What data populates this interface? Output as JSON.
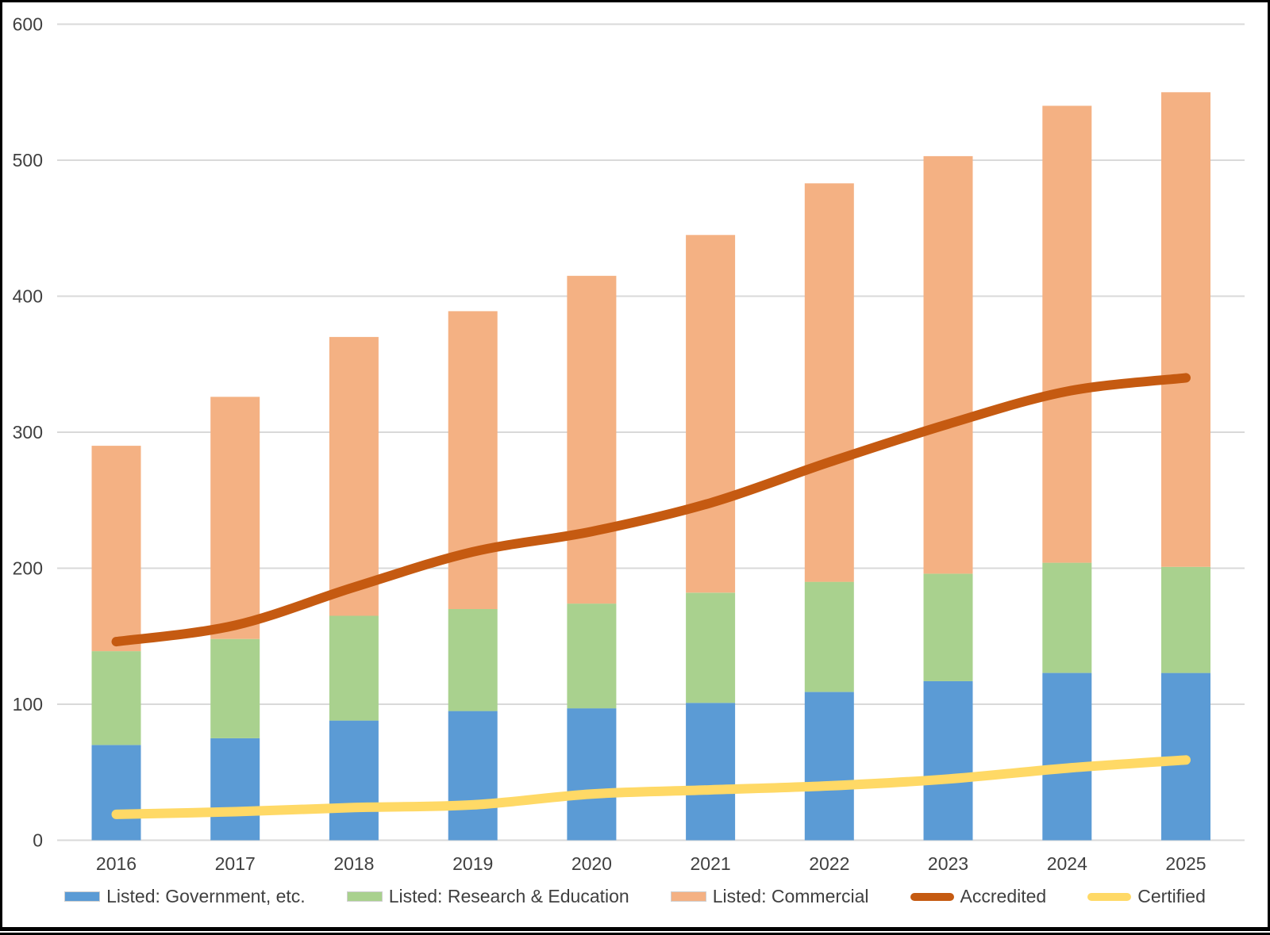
{
  "chart_data": {
    "type": "combo: stacked bar + smoothed line",
    "title": "",
    "xlabel": "",
    "ylabel": "",
    "categories": [
      "2016",
      "2017",
      "2018",
      "2019",
      "2020",
      "2021",
      "2022",
      "2023",
      "2024",
      "2025"
    ],
    "stacking": "stacked",
    "bar_series": [
      {
        "name": "Listed: Government, etc.",
        "color": "#5B9BD5",
        "values": [
          70,
          75,
          88,
          95,
          97,
          101,
          109,
          117,
          123,
          123
        ]
      },
      {
        "name": "Listed: Research & Education",
        "color": "#A9D18E",
        "values": [
          69,
          73,
          77,
          75,
          77,
          81,
          81,
          79,
          81,
          78
        ]
      },
      {
        "name": "Listed: Commercial",
        "color": "#F4B183",
        "values": [
          151,
          178,
          205,
          219,
          241,
          263,
          293,
          307,
          336,
          349
        ]
      }
    ],
    "bar_totals": [
      290,
      326,
      370,
      389,
      415,
      445,
      483,
      503,
      540,
      550
    ],
    "line_series": [
      {
        "name": "Accredited",
        "color": "#C55A11",
        "values": [
          146,
          158,
          186,
          212,
          227,
          248,
          278,
          306,
          330,
          340
        ]
      },
      {
        "name": "Certified",
        "color": "#FFD966",
        "values": [
          19,
          21,
          24,
          26,
          34,
          37,
          40,
          45,
          53,
          59
        ]
      }
    ],
    "ylim": [
      0,
      600
    ],
    "yticks": [
      0,
      100,
      200,
      300,
      400,
      500,
      600
    ],
    "grid": true,
    "gridline_color": "#D9D9D9",
    "axis_text_color": "#404040",
    "legend_position": "bottom"
  }
}
